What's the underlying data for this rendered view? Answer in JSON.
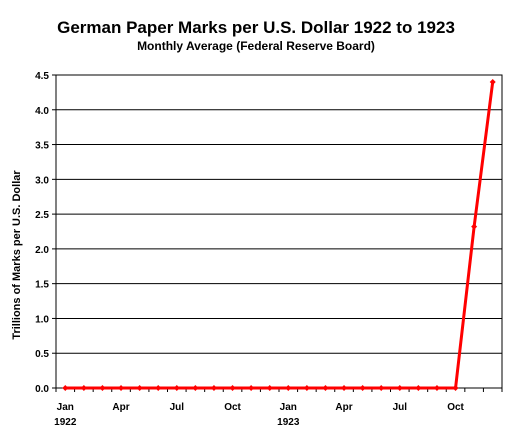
{
  "chart_data": {
    "type": "line",
    "title": "German Paper Marks per U.S. Dollar 1922 to 1923",
    "subtitle": "Monthly Average (Federal Reserve Board)",
    "ylabel": "Trillions of Marks per U.S. Dollar",
    "xlabel": "",
    "ylim": [
      0,
      4.5
    ],
    "y_ticks": [
      "0.0",
      "0.5",
      "1.0",
      "1.5",
      "2.0",
      "2.5",
      "3.0",
      "3.5",
      "4.0",
      "4.5"
    ],
    "x": [
      "1922-01",
      "1922-02",
      "1922-03",
      "1922-04",
      "1922-05",
      "1922-06",
      "1922-07",
      "1922-08",
      "1922-09",
      "1922-10",
      "1922-11",
      "1922-12",
      "1923-01",
      "1923-02",
      "1923-03",
      "1923-04",
      "1923-05",
      "1923-06",
      "1923-07",
      "1923-08",
      "1923-09",
      "1923-10",
      "1923-11",
      "1923-12"
    ],
    "x_tick_labels": [
      {
        "month": "Jan",
        "year": "1922"
      },
      {
        "month": "Apr",
        "year": ""
      },
      {
        "month": "Jul",
        "year": ""
      },
      {
        "month": "Oct",
        "year": ""
      },
      {
        "month": "Jan",
        "year": "1923"
      },
      {
        "month": "Apr",
        "year": ""
      },
      {
        "month": "Jul",
        "year": ""
      },
      {
        "month": "Oct",
        "year": ""
      }
    ],
    "series": [
      {
        "values": [
          0,
          0,
          0,
          0,
          0,
          0,
          0,
          0,
          0,
          0,
          0,
          0,
          0,
          0,
          0,
          0,
          0,
          0,
          0,
          0,
          0,
          0,
          2.32,
          4.4
        ],
        "color": "#ff0000"
      }
    ],
    "grid": true,
    "legend": "none"
  }
}
